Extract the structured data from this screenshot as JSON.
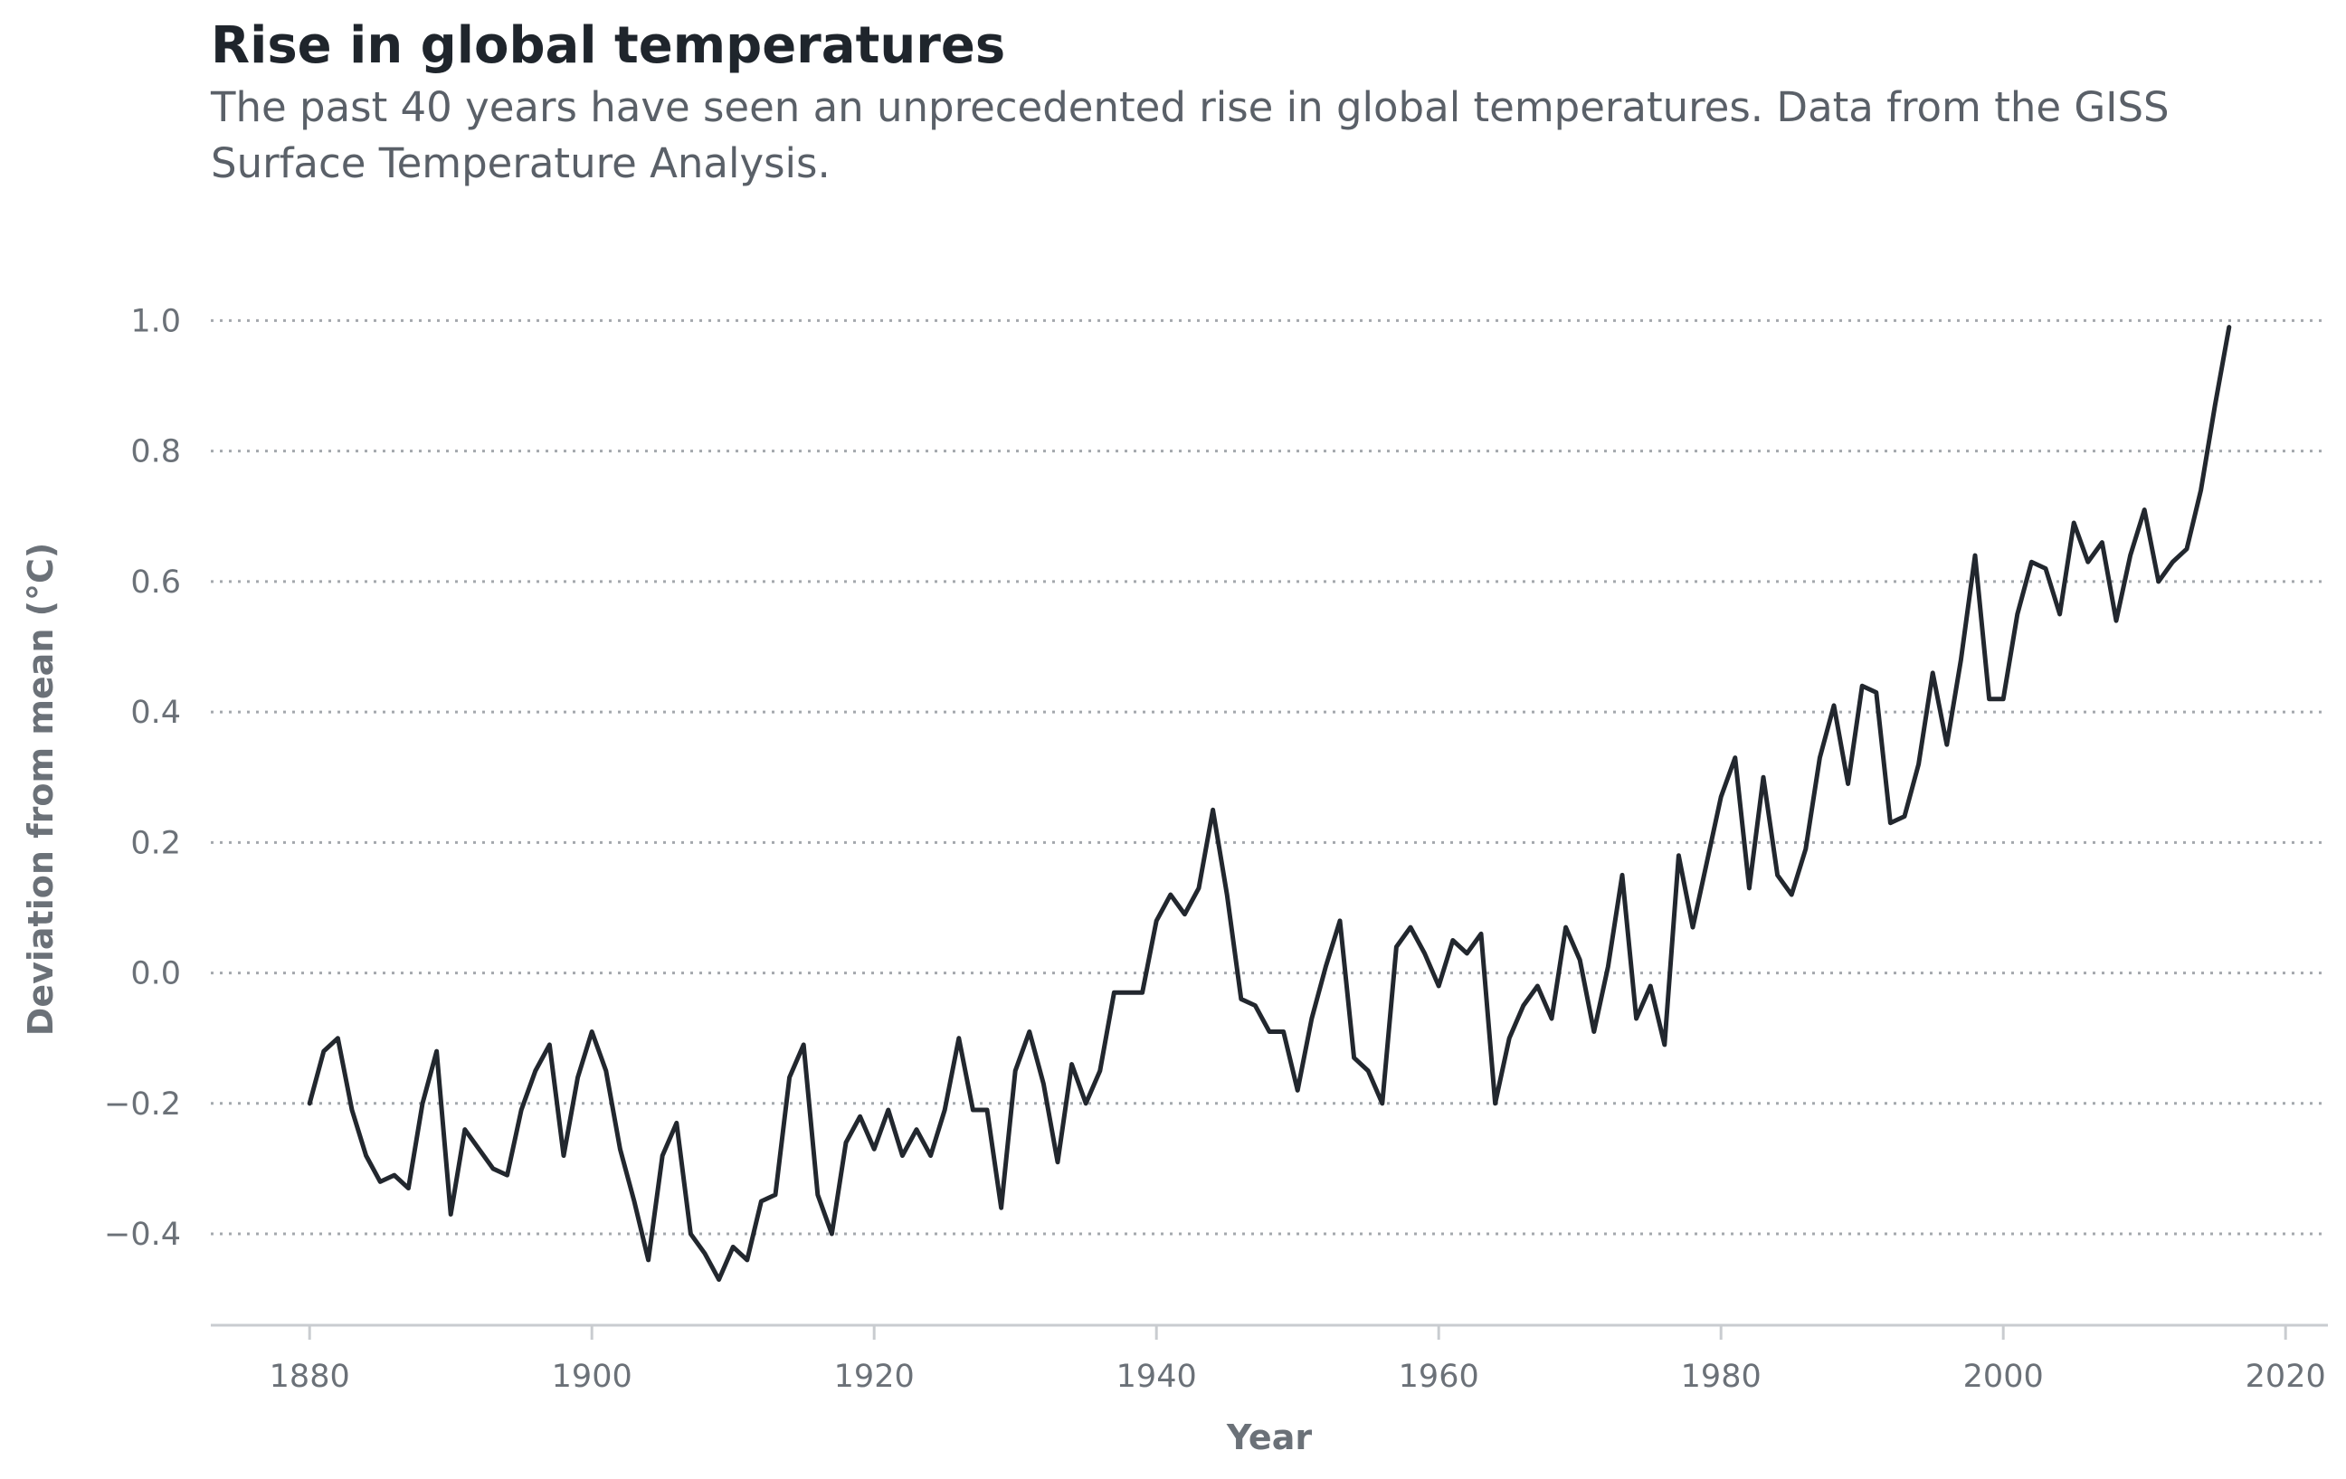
{
  "chart_data": {
    "type": "line",
    "title": "Rise in global temperatures",
    "subtitle": "The past 40 years have seen an unprecedented rise in global temperatures. Data from the GISS Surface Temperature Analysis.",
    "xlabel": "Year",
    "ylabel": "Deviation from mean (°C)",
    "xlim": [
      1873,
      2023
    ],
    "ylim": [
      -0.54,
      1.02
    ],
    "xticks": [
      1880,
      1900,
      1920,
      1940,
      1960,
      1980,
      2000,
      2020
    ],
    "yticks": [
      -0.4,
      -0.2,
      0.0,
      0.2,
      0.4,
      0.6,
      0.8,
      1.0
    ],
    "ytick_labels": [
      "−0.4",
      "−0.2",
      "0.0",
      "0.2",
      "0.4",
      "0.6",
      "0.8",
      "1.0"
    ],
    "grid": "horizontal dotted",
    "x": [
      1880,
      1881,
      1882,
      1883,
      1884,
      1885,
      1886,
      1887,
      1888,
      1889,
      1890,
      1891,
      1892,
      1893,
      1894,
      1895,
      1896,
      1897,
      1898,
      1899,
      1900,
      1901,
      1902,
      1903,
      1904,
      1905,
      1906,
      1907,
      1908,
      1909,
      1910,
      1911,
      1912,
      1913,
      1914,
      1915,
      1916,
      1917,
      1918,
      1919,
      1920,
      1921,
      1922,
      1923,
      1924,
      1925,
      1926,
      1927,
      1928,
      1929,
      1930,
      1931,
      1932,
      1933,
      1934,
      1935,
      1936,
      1937,
      1938,
      1939,
      1940,
      1941,
      1942,
      1943,
      1944,
      1945,
      1946,
      1947,
      1948,
      1949,
      1950,
      1951,
      1952,
      1953,
      1954,
      1955,
      1956,
      1957,
      1958,
      1959,
      1960,
      1961,
      1962,
      1963,
      1964,
      1965,
      1966,
      1967,
      1968,
      1969,
      1970,
      1971,
      1972,
      1973,
      1974,
      1975,
      1976,
      1977,
      1978,
      1979,
      1980,
      1981,
      1982,
      1983,
      1984,
      1985,
      1986,
      1987,
      1988,
      1989,
      1990,
      1991,
      1992,
      1993,
      1994,
      1995,
      1996,
      1997,
      1998,
      1999,
      2000,
      2001,
      2002,
      2003,
      2004,
      2005,
      2006,
      2007,
      2008,
      2009,
      2010,
      2011,
      2012,
      2013,
      2014,
      2015,
      2016
    ],
    "series": [
      {
        "color": "#22272e",
        "values": [
          -0.2,
          -0.12,
          -0.1,
          -0.21,
          -0.28,
          -0.32,
          -0.31,
          -0.33,
          -0.2,
          -0.12,
          -0.37,
          -0.24,
          -0.27,
          -0.3,
          -0.31,
          -0.21,
          -0.15,
          -0.11,
          -0.28,
          -0.16,
          -0.09,
          -0.15,
          -0.27,
          -0.35,
          -0.44,
          -0.28,
          -0.23,
          -0.4,
          -0.43,
          -0.47,
          -0.42,
          -0.44,
          -0.35,
          -0.34,
          -0.16,
          -0.11,
          -0.34,
          -0.4,
          -0.26,
          -0.22,
          -0.27,
          -0.21,
          -0.28,
          -0.24,
          -0.28,
          -0.21,
          -0.1,
          -0.21,
          -0.21,
          -0.36,
          -0.15,
          -0.09,
          -0.17,
          -0.29,
          -0.14,
          -0.2,
          -0.15,
          -0.03,
          -0.03,
          -0.03,
          0.08,
          0.12,
          0.09,
          0.13,
          0.25,
          0.12,
          -0.04,
          -0.05,
          -0.09,
          -0.09,
          -0.18,
          -0.07,
          0.01,
          0.08,
          -0.13,
          -0.15,
          -0.2,
          0.04,
          0.07,
          0.03,
          -0.02,
          0.05,
          0.03,
          0.06,
          -0.2,
          -0.1,
          -0.05,
          -0.02,
          -0.07,
          0.07,
          0.02,
          -0.09,
          0.01,
          0.15,
          -0.07,
          -0.02,
          -0.11,
          0.18,
          0.07,
          0.17,
          0.27,
          0.33,
          0.13,
          0.3,
          0.15,
          0.12,
          0.19,
          0.33,
          0.41,
          0.29,
          0.44,
          0.43,
          0.23,
          0.24,
          0.32,
          0.46,
          0.35,
          0.48,
          0.64,
          0.42,
          0.42,
          0.55,
          0.63,
          0.62,
          0.55,
          0.69,
          0.63,
          0.66,
          0.54,
          0.64,
          0.71,
          0.6,
          0.63,
          0.65,
          0.74,
          0.87,
          0.99
        ]
      }
    ]
  }
}
